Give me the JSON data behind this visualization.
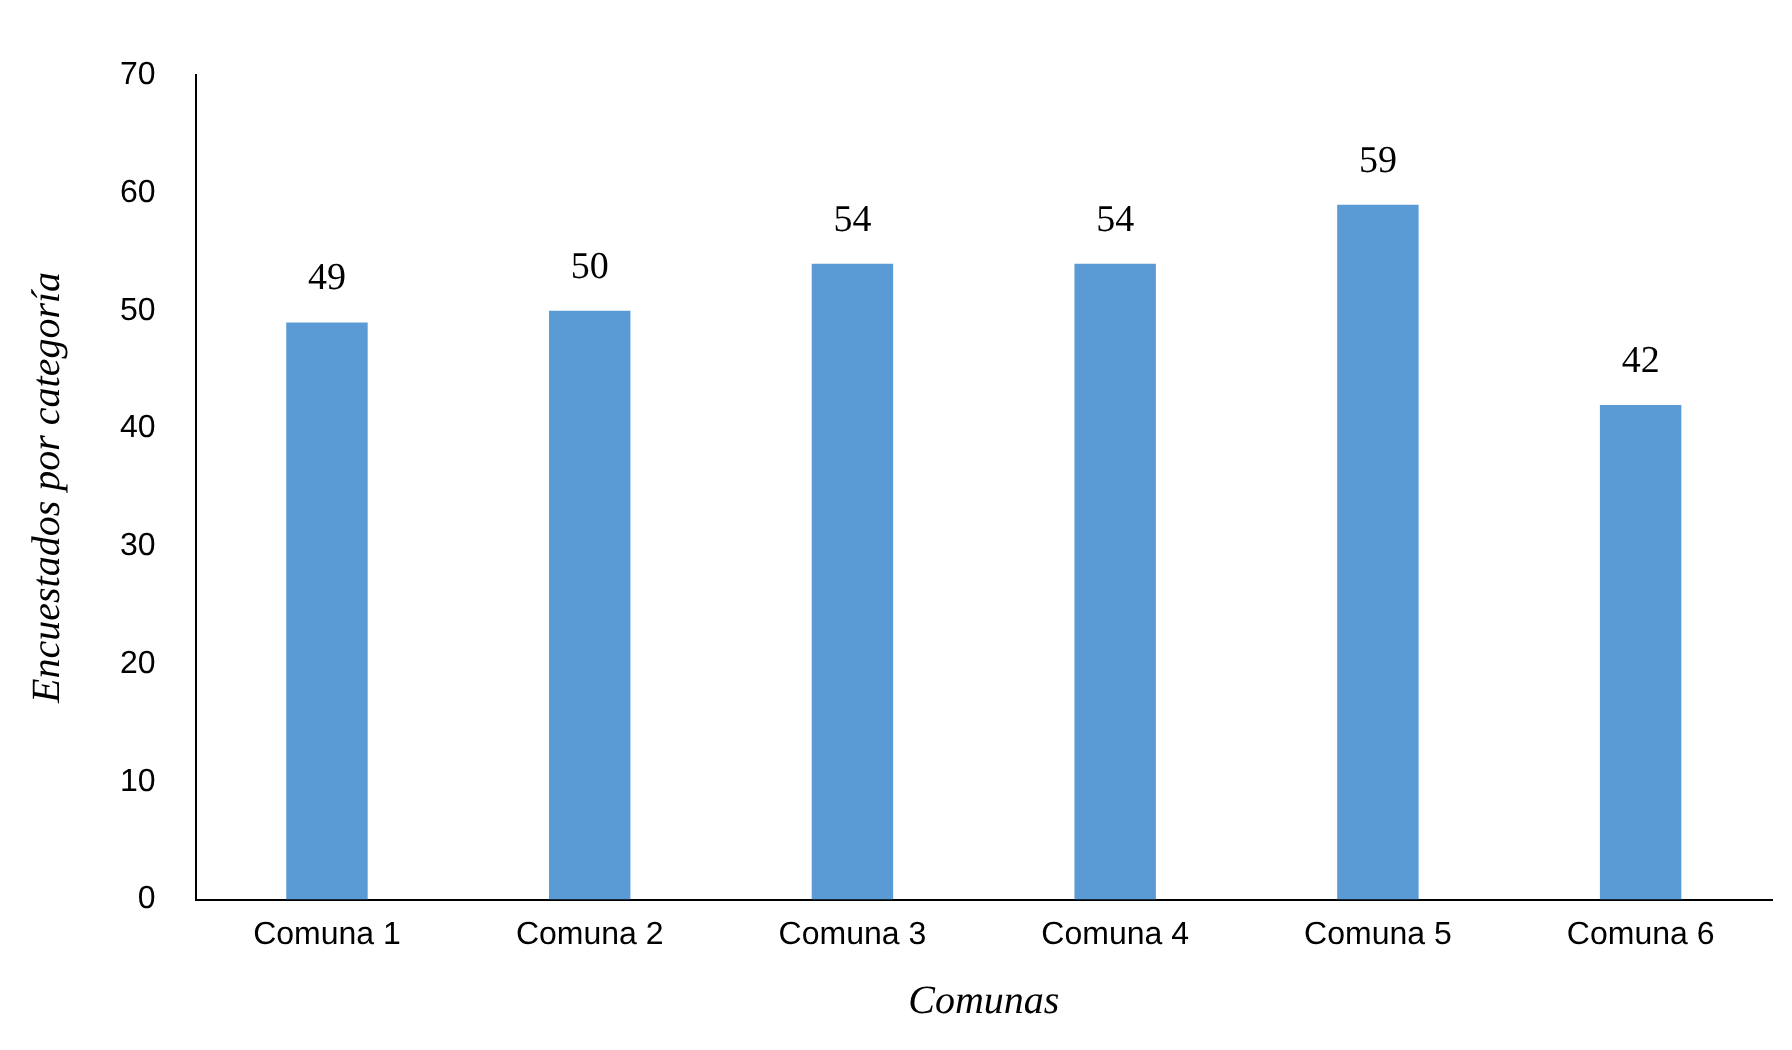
{
  "chart_data": {
    "type": "bar",
    "xlabel": "Comunas",
    "ylabel": "Encuestados por categoría",
    "categories": [
      "Comuna 1",
      "Comuna 2",
      "Comuna 3",
      "Comuna 4",
      "Comuna 5",
      "Comuna 6"
    ],
    "values": [
      49,
      50,
      54,
      54,
      59,
      42
    ],
    "color": "#5b9bd5",
    "ylim": [
      0,
      70
    ],
    "yticks": [
      0,
      10,
      20,
      30,
      40,
      50,
      60,
      70
    ],
    "data_labels": true,
    "legend": false
  }
}
